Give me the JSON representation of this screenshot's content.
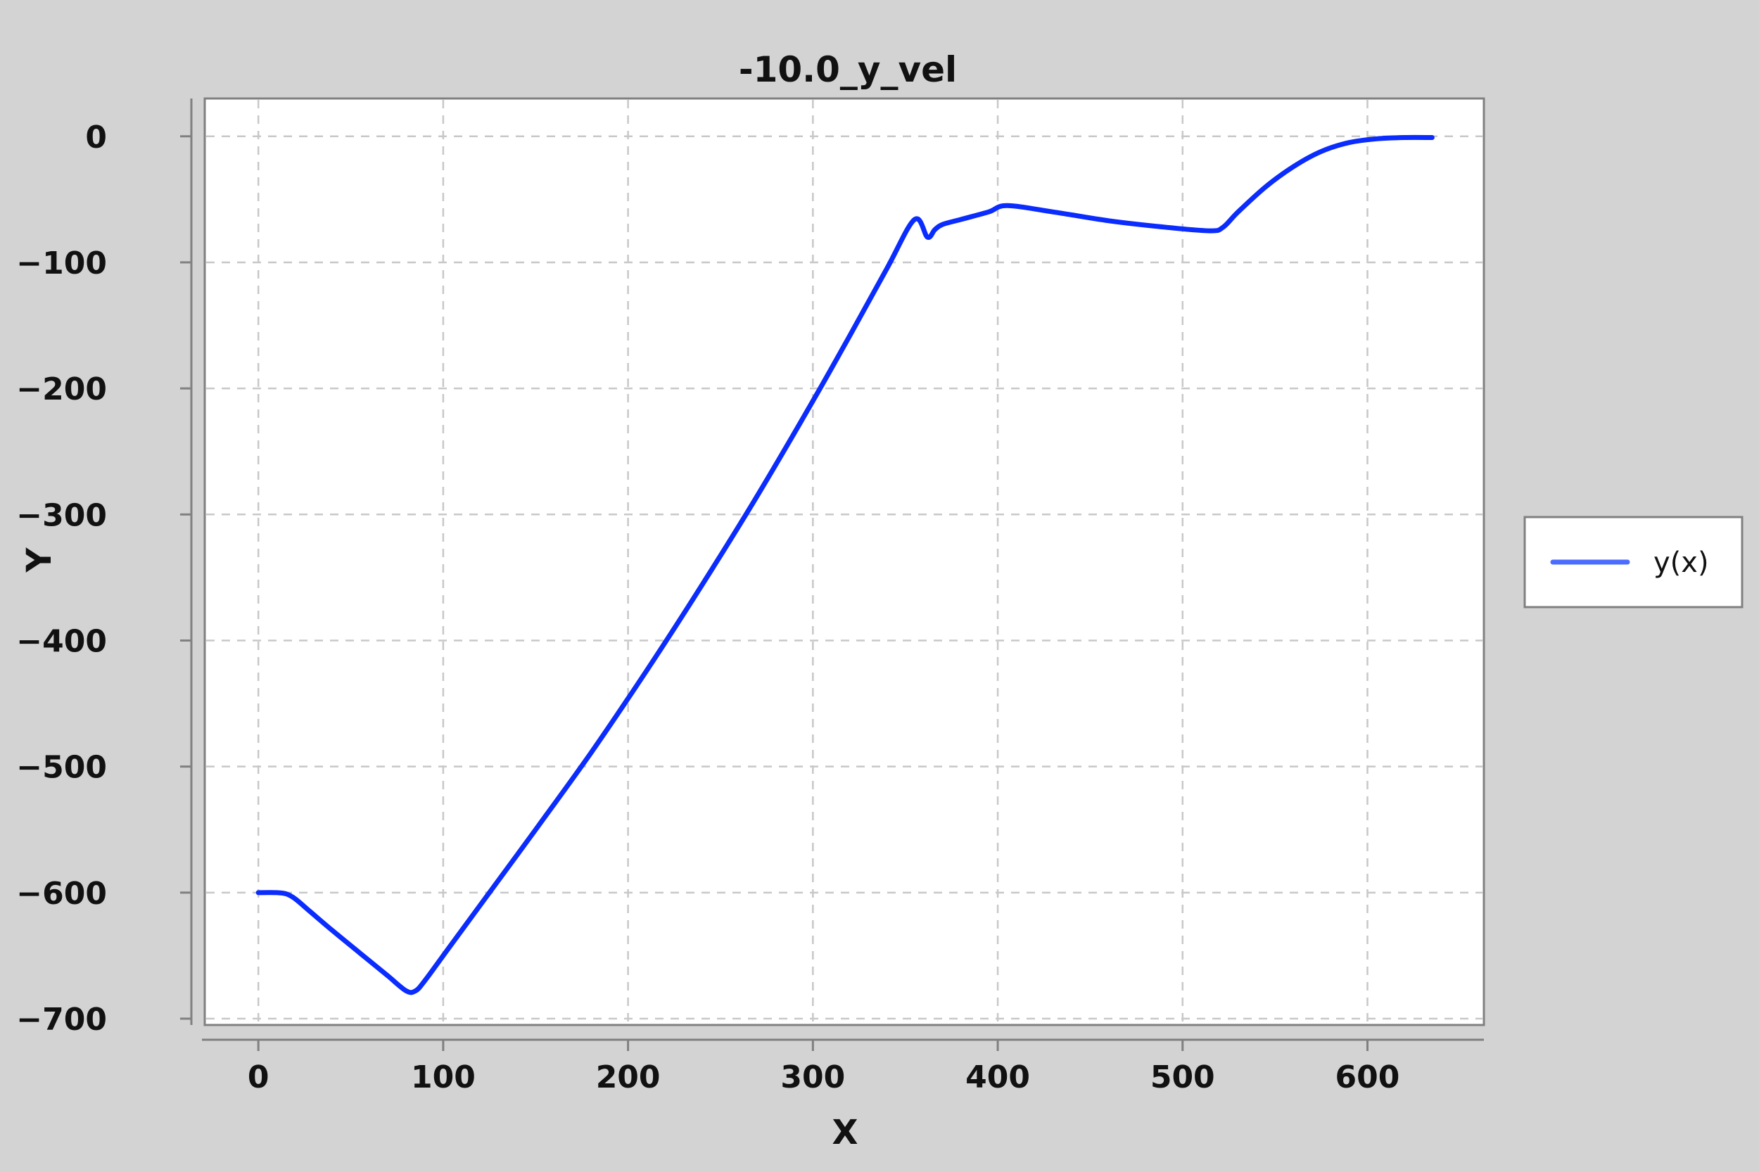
{
  "chart_data": {
    "type": "line",
    "title": "-10.0_y_vel",
    "xlabel": "X",
    "ylabel": "Y",
    "xlim": [
      -29,
      663
    ],
    "ylim": [
      -705,
      30
    ],
    "xticks": [
      0,
      100,
      200,
      300,
      400,
      500,
      600
    ],
    "yticks": [
      0,
      -100,
      -200,
      -300,
      -400,
      -500,
      -600,
      -700
    ],
    "xtick_labels": [
      "0",
      "100",
      "200",
      "300",
      "400",
      "500",
      "600"
    ],
    "ytick_labels": [
      "0",
      "−100",
      "−200",
      "−300",
      "−400",
      "−500",
      "−600",
      "−700"
    ],
    "grid": true,
    "legend_position": "right",
    "series": [
      {
        "name": "y(x)",
        "color": "#0a2cff",
        "x": [
          0,
          10,
          15,
          20,
          28,
          40,
          55,
          70,
          80,
          85,
          90,
          100,
          120,
          150,
          180,
          210,
          240,
          270,
          300,
          320,
          340,
          355,
          362,
          366,
          370,
          380,
          395,
          405,
          430,
          460,
          490,
          515,
          522,
          530,
          545,
          560,
          575,
          590,
          605,
          620,
          635
        ],
        "y": [
          -600,
          -600,
          -601,
          -605,
          -615,
          -630,
          -648,
          -666,
          -678,
          -678,
          -670,
          -650,
          -610,
          -550,
          -489,
          -424,
          -356,
          -285,
          -210,
          -158,
          -105,
          -66,
          -80,
          -74,
          -70,
          -66,
          -60,
          -55,
          -60,
          -67,
          -72,
          -75,
          -72,
          -60,
          -40,
          -24,
          -12,
          -5,
          -2,
          -1,
          -1
        ]
      }
    ]
  }
}
